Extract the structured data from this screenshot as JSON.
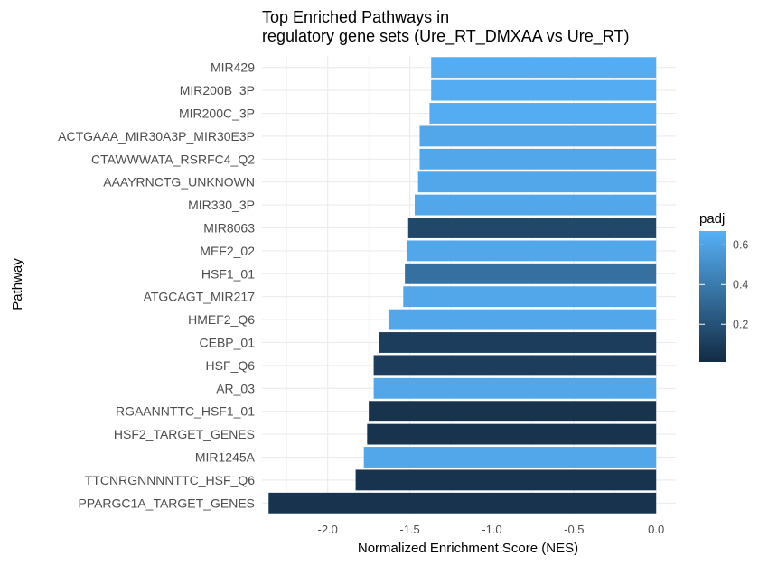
{
  "chart_data": {
    "type": "bar",
    "orientation": "horizontal",
    "title_line1": "Top Enriched Pathways in",
    "title_line2": "regulatory gene sets (Ure_RT_DMXAA vs Ure_RT)",
    "xlabel": "Normalized Enrichment Score (NES)",
    "ylabel": "Pathway",
    "xlim": [
      -2.4,
      0.12
    ],
    "xticks": [
      -2.0,
      -1.5,
      -1.0,
      -0.5,
      0.0
    ],
    "xtick_labels": [
      "-2.0",
      "-1.5",
      "-1.0",
      "-0.5",
      "0.0"
    ],
    "grid": true,
    "legend": {
      "title": "padj",
      "placement": "right",
      "range": [
        0.01,
        0.67
      ],
      "ticks": [
        0.2,
        0.4,
        0.6
      ],
      "tick_labels": [
        "0.2",
        "0.4",
        "0.6"
      ],
      "color_low": "#132B43",
      "color_high": "#56B1F7"
    },
    "categories": [
      "MIR429",
      "MIR200B_3P",
      "MIR200C_3P",
      "ACTGAAA_MIR30A3P_MIR30E3P",
      "CTAWWWATA_RSRFC4_Q2",
      "AAAYRNCTG_UNKNOWN",
      "MIR330_3P",
      "MIR8063",
      "MEF2_02",
      "HSF1_01",
      "ATGCAGT_MIR217",
      "HMEF2_Q6",
      "CEBP_01",
      "HSF_Q6",
      "AR_03",
      "RGAANNTTC_HSF1_01",
      "HSF2_TARGET_GENES",
      "MIR1245A",
      "TTCNRGNNNNTTC_HSF_Q6",
      "PPARGC1A_TARGET_GENES"
    ],
    "values": [
      -1.37,
      -1.37,
      -1.38,
      -1.44,
      -1.44,
      -1.45,
      -1.47,
      -1.51,
      -1.52,
      -1.53,
      -1.54,
      -1.63,
      -1.69,
      -1.72,
      -1.72,
      -1.75,
      -1.76,
      -1.78,
      -1.83,
      -2.36
    ],
    "padj": [
      0.65,
      0.65,
      0.65,
      0.62,
      0.62,
      0.62,
      0.62,
      0.15,
      0.62,
      0.35,
      0.62,
      0.62,
      0.1,
      0.1,
      0.62,
      0.05,
      0.05,
      0.62,
      0.05,
      0.05
    ]
  }
}
